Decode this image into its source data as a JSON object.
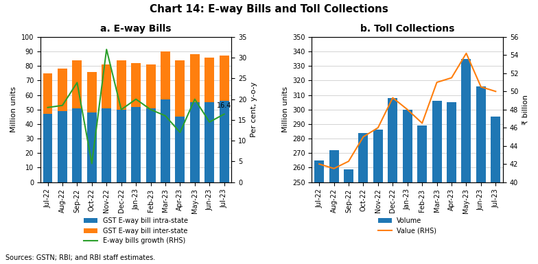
{
  "title": "Chart 14: E-way Bills and Toll Collections",
  "annotations": [
    "Sources: GSTN; RBI; and RBI staff estimates."
  ],
  "chart_data": [
    {
      "type": "bar",
      "title": "a. E-way Bills",
      "ylabel": "Million units",
      "y2label": "Per cent, y-o-y",
      "categories": [
        "Jul-22",
        "Aug-22",
        "Sep-22",
        "Oct-22",
        "Nov-22",
        "Dec-22",
        "Jan-23",
        "Feb-23",
        "Mar-23",
        "Apr-23",
        "May-23",
        "Jun-23",
        "Jul-23"
      ],
      "stacked": true,
      "series": [
        {
          "name": "GST E-way bill intra-state",
          "type": "bar",
          "values": [
            47,
            49,
            51,
            48,
            51,
            50,
            52,
            51,
            57,
            45,
            55,
            55,
            56
          ]
        },
        {
          "name": "GST E-way bill inter-state",
          "type": "bar",
          "values": [
            28,
            29,
            33,
            28,
            30,
            34,
            30,
            30,
            33,
            39,
            33,
            31,
            31
          ]
        },
        {
          "name": "E-way bills growth (RHS)",
          "type": "line",
          "axis": "y2",
          "values": [
            18,
            18.5,
            24,
            4.5,
            32,
            17.5,
            20,
            17.5,
            16,
            12,
            20,
            14.5,
            16.4
          ]
        }
      ],
      "ylim": [
        0,
        100
      ],
      "yticks": [
        0,
        10,
        20,
        30,
        40,
        50,
        60,
        70,
        80,
        90,
        100
      ],
      "y2lim": [
        0,
        35
      ],
      "y2ticks": [
        0,
        5,
        10,
        15,
        20,
        25,
        30,
        35
      ],
      "grid": true,
      "legend": "upper center",
      "annotations": [
        {
          "text": "16.4",
          "x": "Jul-23",
          "y": 16.4,
          "axis": "y2"
        }
      ]
    },
    {
      "type": "bar",
      "title": "b. Toll Collections",
      "ylabel": "Million units",
      "y2label": "₹ billion",
      "categories": [
        "Jul-22",
        "Aug-22",
        "Sep-22",
        "Oct-22",
        "Nov-22",
        "Dec-22",
        "Jan-23",
        "Feb-23",
        "Mar-23",
        "Apr-23",
        "May-23",
        "Jun-23",
        "Jul-23"
      ],
      "series": [
        {
          "name": "Volume",
          "type": "bar",
          "values": [
            265,
            272,
            259,
            284,
            286,
            308,
            300,
            289,
            306,
            305,
            335,
            316,
            295
          ]
        },
        {
          "name": "Value (RHS)",
          "type": "line",
          "axis": "y2",
          "values": [
            42.0,
            41.5,
            42.3,
            45.0,
            46.0,
            49.3,
            48.0,
            46.5,
            51.0,
            51.5,
            54.2,
            50.5,
            50.0
          ]
        }
      ],
      "ylim": [
        250,
        350
      ],
      "yticks": [
        250,
        260,
        270,
        280,
        290,
        300,
        310,
        320,
        330,
        340,
        350
      ],
      "y2lim": [
        40,
        56
      ],
      "y2ticks": [
        40,
        42,
        44,
        46,
        48,
        50,
        52,
        54,
        56
      ],
      "grid": true,
      "legend": "upper center"
    }
  ]
}
